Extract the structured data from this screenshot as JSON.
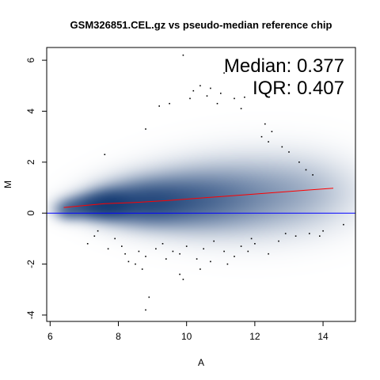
{
  "chart_data": {
    "type": "scatter",
    "title": "GSM326851.CEL.gz vs pseudo-median reference chip",
    "xlabel": "A",
    "ylabel": "M",
    "xlim": [
      5.9,
      14.95
    ],
    "ylim": [
      -4.25,
      6.5
    ],
    "xticks": [
      6,
      8,
      10,
      12,
      14
    ],
    "yticks": [
      -4,
      -2,
      0,
      2,
      4,
      6
    ],
    "stats": {
      "median_label": "Median: 0.377",
      "iqr_label": "IQR: 0.407"
    },
    "reference_line": {
      "y": 0,
      "color": "#0000ff"
    },
    "loess_curve": {
      "color": "#ff0000",
      "points": [
        [
          6.4,
          0.22
        ],
        [
          7.0,
          0.3
        ],
        [
          7.6,
          0.37
        ],
        [
          8.5,
          0.42
        ],
        [
          9.5,
          0.5
        ],
        [
          10.5,
          0.6
        ],
        [
          11.5,
          0.7
        ],
        [
          12.5,
          0.8
        ],
        [
          13.5,
          0.9
        ],
        [
          14.3,
          0.98
        ]
      ]
    },
    "density": {
      "colormap": [
        "#ffffff",
        "#08306b"
      ],
      "blobs": [
        {
          "x": 7.7,
          "y": 0.35,
          "sx": 0.45,
          "sy": 0.35,
          "w": 1.0
        },
        {
          "x": 8.6,
          "y": 0.4,
          "sx": 0.8,
          "sy": 0.5,
          "w": 0.75
        },
        {
          "x": 9.6,
          "y": 0.5,
          "sx": 1.1,
          "sy": 0.65,
          "w": 0.55
        },
        {
          "x": 10.8,
          "y": 0.6,
          "sx": 1.3,
          "sy": 0.85,
          "w": 0.35
        },
        {
          "x": 12.2,
          "y": 0.75,
          "sx": 1.4,
          "sy": 1.0,
          "w": 0.22
        },
        {
          "x": 13.6,
          "y": 0.85,
          "sx": 1.0,
          "sy": 0.9,
          "w": 0.12
        },
        {
          "x": 7.0,
          "y": 0.25,
          "sx": 0.45,
          "sy": 0.3,
          "w": 0.7
        },
        {
          "x": 6.5,
          "y": 0.1,
          "sx": 0.25,
          "sy": 0.25,
          "w": 0.35
        }
      ]
    },
    "outliers": {
      "color": "#000000",
      "points": [
        [
          9.9,
          6.2
        ],
        [
          11.1,
          5.5
        ],
        [
          10.4,
          5.0
        ],
        [
          10.7,
          4.9
        ],
        [
          10.2,
          4.8
        ],
        [
          11.0,
          4.7
        ],
        [
          10.6,
          4.6
        ],
        [
          10.1,
          4.5
        ],
        [
          11.4,
          4.5
        ],
        [
          11.7,
          4.55
        ],
        [
          9.5,
          4.3
        ],
        [
          9.2,
          4.2
        ],
        [
          10.9,
          4.3
        ],
        [
          11.6,
          4.1
        ],
        [
          12.3,
          3.5
        ],
        [
          12.5,
          3.2
        ],
        [
          12.2,
          3.0
        ],
        [
          12.4,
          2.8
        ],
        [
          12.8,
          2.6
        ],
        [
          13.0,
          2.4
        ],
        [
          13.3,
          2.0
        ],
        [
          13.5,
          1.7
        ],
        [
          13.7,
          1.5
        ],
        [
          8.8,
          3.3
        ],
        [
          7.6,
          2.3
        ],
        [
          7.3,
          -0.9
        ],
        [
          7.9,
          -1.0
        ],
        [
          8.1,
          -1.3
        ],
        [
          8.2,
          -1.6
        ],
        [
          7.7,
          -1.4
        ],
        [
          7.1,
          -1.2
        ],
        [
          8.6,
          -1.5
        ],
        [
          8.8,
          -1.7
        ],
        [
          9.1,
          -1.4
        ],
        [
          9.3,
          -1.2
        ],
        [
          9.6,
          -1.5
        ],
        [
          9.8,
          -1.6
        ],
        [
          10.3,
          -1.8
        ],
        [
          10.7,
          -1.9
        ],
        [
          11.1,
          -1.5
        ],
        [
          11.6,
          -1.3
        ],
        [
          12.0,
          -1.2
        ],
        [
          12.4,
          -1.6
        ],
        [
          12.7,
          -1.1
        ],
        [
          13.2,
          -0.9
        ],
        [
          13.6,
          -0.8
        ],
        [
          14.0,
          -0.7
        ],
        [
          14.6,
          -0.45
        ],
        [
          8.5,
          -2.0
        ],
        [
          8.7,
          -2.2
        ],
        [
          9.8,
          -2.4
        ],
        [
          9.9,
          -2.6
        ],
        [
          10.4,
          -2.2
        ],
        [
          11.2,
          -2.0
        ],
        [
          11.4,
          -1.7
        ],
        [
          8.9,
          -3.3
        ],
        [
          8.8,
          -3.8
        ],
        [
          9.4,
          -1.8
        ],
        [
          10.0,
          -1.3
        ],
        [
          10.8,
          -1.1
        ],
        [
          11.9,
          -1.0
        ],
        [
          12.9,
          -0.8
        ],
        [
          13.9,
          -0.9
        ],
        [
          7.4,
          -0.7
        ],
        [
          8.3,
          -1.9
        ],
        [
          10.5,
          -1.4
        ],
        [
          11.8,
          -1.5
        ]
      ]
    }
  }
}
